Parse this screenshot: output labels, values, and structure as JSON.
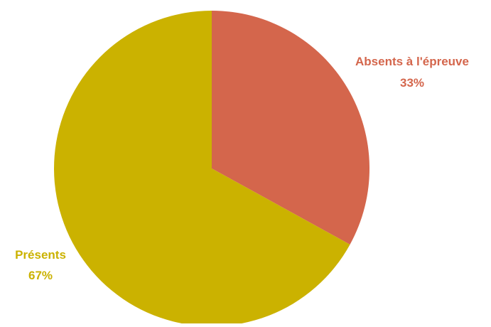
{
  "chart_data": {
    "type": "pie",
    "categories": [
      "Absents à l'épreuve",
      "Présents"
    ],
    "values": [
      33,
      67
    ],
    "value_labels": [
      "33%",
      "67%"
    ],
    "colors": [
      "#D4664C",
      "#CBB200"
    ],
    "start": "12 o'clock",
    "direction": "clockwise",
    "legend": "none",
    "label_position": "outside"
  }
}
